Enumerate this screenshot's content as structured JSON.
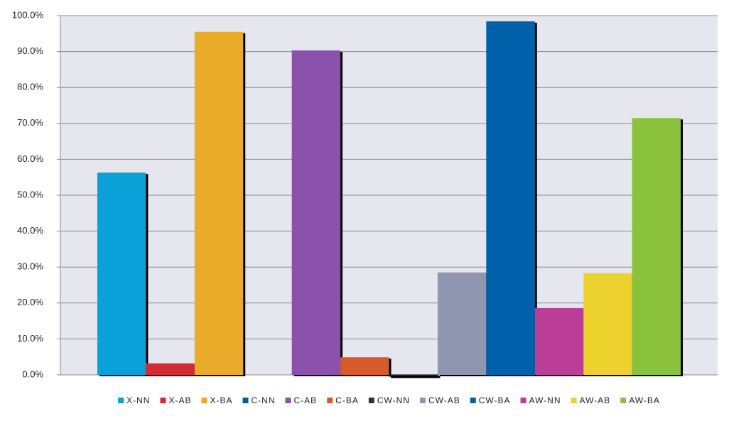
{
  "chart_data": {
    "type": "bar",
    "series": [
      {
        "name": "X-NN",
        "color": "#0aa0d8",
        "values": [
          56.3
        ]
      },
      {
        "name": "X-AB",
        "color": "#d42a35",
        "values": [
          3.2
        ]
      },
      {
        "name": "X-BA",
        "color": "#eaab2a",
        "values": [
          95.5
        ]
      },
      {
        "name": "C-NN",
        "color": "#005fa8",
        "values": [
          null
        ]
      },
      {
        "name": "C-AB",
        "color": "#8a52aa",
        "values": [
          90.3
        ]
      },
      {
        "name": "C-BA",
        "color": "#d75a2a",
        "values": [
          4.9
        ]
      },
      {
        "name": "CW-NN",
        "color": "#333333",
        "values": [
          0
        ]
      },
      {
        "name": "CW-AB",
        "color": "#9096b0",
        "values": [
          28.5
        ]
      },
      {
        "name": "CW-BA",
        "color": "#0060aa",
        "values": [
          98.4
        ]
      },
      {
        "name": "AW-NN",
        "color": "#bb3f98",
        "values": [
          18.6
        ]
      },
      {
        "name": "AW-AB",
        "color": "#edd22e",
        "values": [
          28.3
        ]
      },
      {
        "name": "AW-BA",
        "color": "#8ac23d",
        "values": [
          71.5
        ]
      }
    ],
    "ylim": [
      0,
      100
    ],
    "yticks": [
      {
        "value": 0,
        "label": "0.0%"
      },
      {
        "value": 10,
        "label": "10.0%"
      },
      {
        "value": 20,
        "label": "20.0%"
      },
      {
        "value": 30,
        "label": "30.0%"
      },
      {
        "value": 40,
        "label": "40.0%"
      },
      {
        "value": 50,
        "label": "50.0%"
      },
      {
        "value": 60,
        "label": "60.0%"
      },
      {
        "value": 70,
        "label": "70.0%"
      },
      {
        "value": 80,
        "label": "80.0%"
      },
      {
        "value": 90,
        "label": "90.0%"
      },
      {
        "value": 100,
        "label": "100.0%"
      }
    ],
    "grid": true,
    "legend": "bottom"
  }
}
